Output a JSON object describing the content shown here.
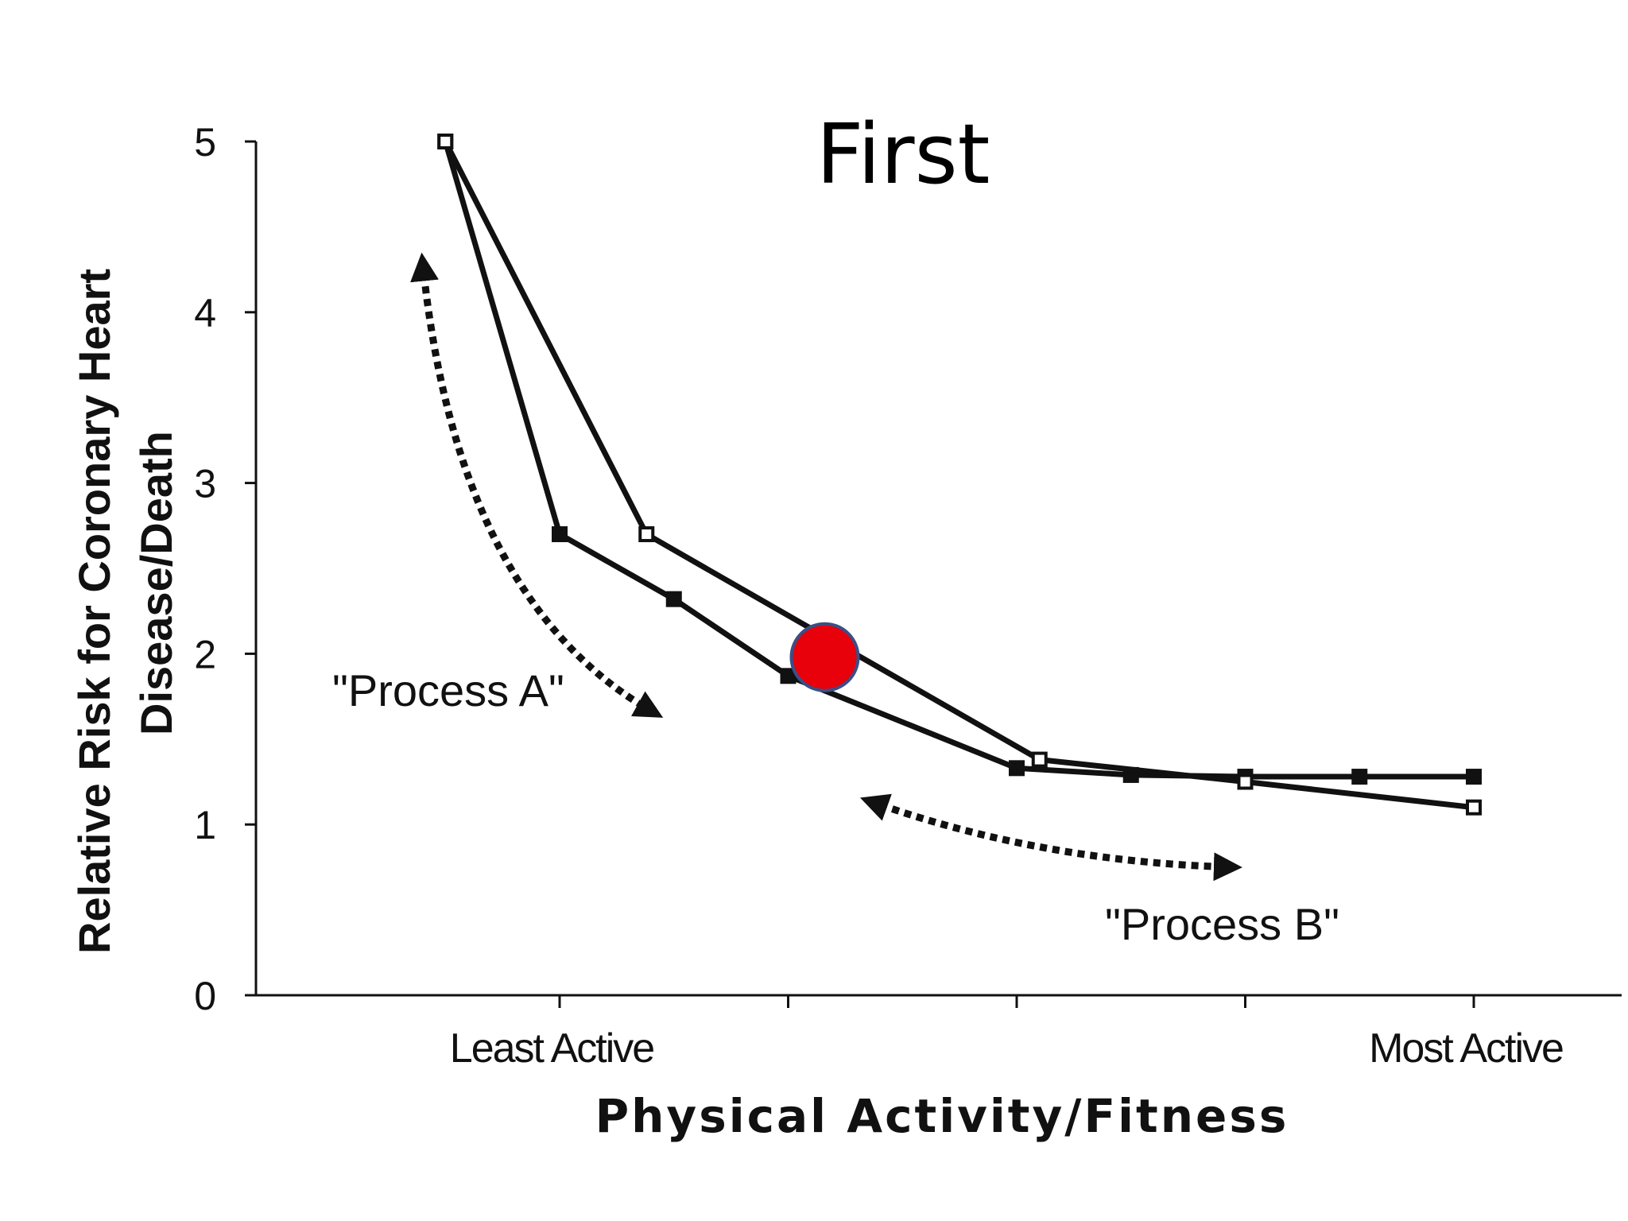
{
  "chart_data": {
    "type": "line",
    "title": "First",
    "xlabel": "Physical Activity/Fitness",
    "ylabel_lines": [
      "Relative Risk for Coronary Heart",
      "Disease/Death"
    ],
    "ylim": [
      0,
      5
    ],
    "yticks": [
      "0",
      "1",
      "2",
      "3",
      "4",
      "5"
    ],
    "x_range": [
      0,
      4
    ],
    "category_labels": [
      {
        "text": "Least Active",
        "x": 0
      },
      {
        "text": "Most Active",
        "x": 4
      }
    ],
    "series": [
      {
        "marker": "filled-square",
        "points": [
          [
            -0.5,
            5.0
          ],
          [
            0.0,
            2.7
          ],
          [
            0.5,
            2.32
          ],
          [
            1.0,
            1.87
          ],
          [
            2.0,
            1.33
          ],
          [
            2.5,
            1.29
          ],
          [
            3.0,
            1.28
          ],
          [
            3.5,
            1.28
          ],
          [
            4.0,
            1.28
          ]
        ]
      },
      {
        "marker": "open-square",
        "points": [
          [
            -0.5,
            5.0
          ],
          [
            0.38,
            2.7
          ],
          [
            2.1,
            1.38
          ],
          [
            3.0,
            1.25
          ],
          [
            4.0,
            1.1
          ]
        ]
      }
    ],
    "highlight_point": {
      "x": 1.16,
      "y": 1.98,
      "color": "#e8000b",
      "stroke": "#3a4f86"
    },
    "annotations": [
      {
        "text": "\"Process A\"",
        "arrow": [
          [
            -0.6,
            4.3
          ],
          [
            0.42,
            1.65
          ]
        ]
      },
      {
        "text": "\"Process B\"",
        "arrow": [
          [
            1.35,
            1.14
          ],
          [
            2.95,
            0.75
          ]
        ]
      }
    ]
  }
}
